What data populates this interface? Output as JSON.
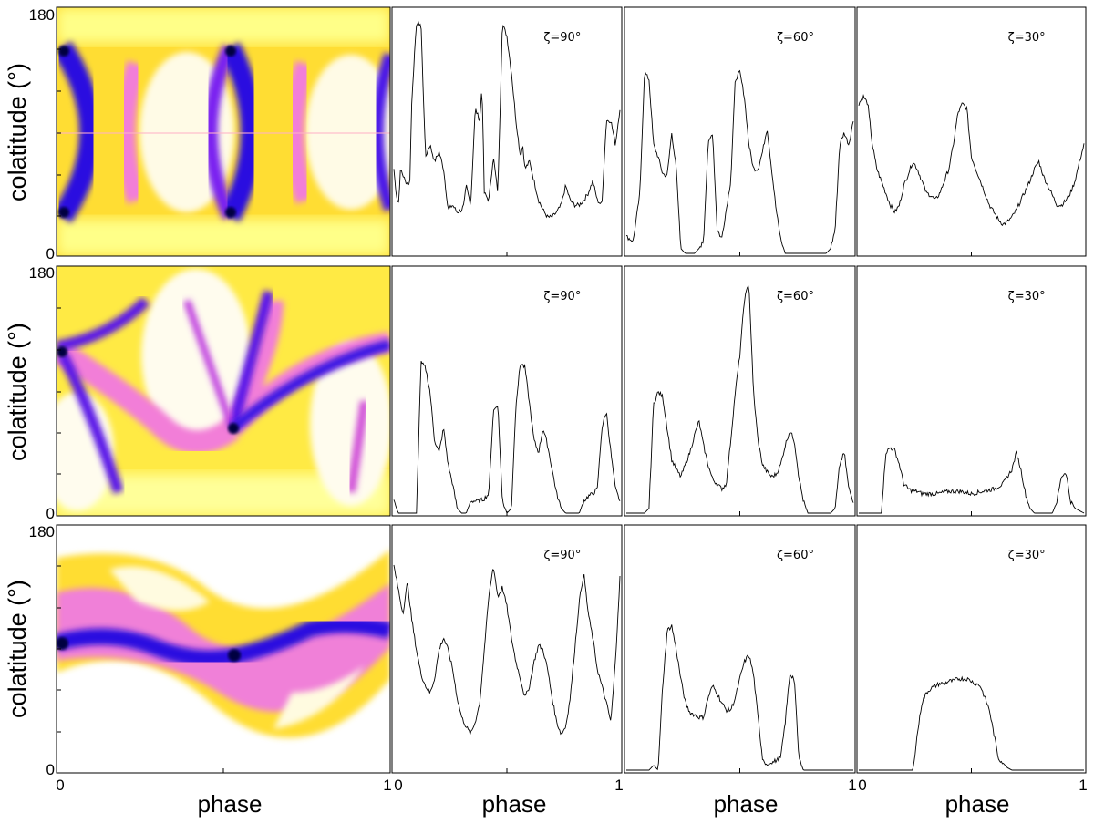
{
  "figure": {
    "colormap_stops": [
      "#ffffff",
      "#ffff66",
      "#ffd000",
      "#f070d0",
      "#7000ff",
      "#2000d0",
      "#000030"
    ]
  },
  "chart_data": [
    {
      "type": "heatmap",
      "row": 1,
      "xlabel": "",
      "ylabel": "colatitude (°)",
      "x_ticks": [
        "0",
        "",
        "1"
      ],
      "y_ticks": [
        "180",
        "",
        "",
        "",
        "",
        "",
        "0"
      ],
      "xlim": [
        0,
        1
      ],
      "ylim": [
        0,
        180
      ],
      "dark_band": {
        "shape": "arcs",
        "arc_phases": [
          0.0,
          0.15,
          0.5,
          0.62,
          1.0
        ],
        "caustic_points": [
          {
            "phase": 0.02,
            "colatitude": 145
          },
          {
            "phase": 0.02,
            "colatitude": 30
          },
          {
            "phase": 0.52,
            "colatitude": 145
          },
          {
            "phase": 0.52,
            "colatitude": 30
          }
        ]
      }
    },
    {
      "type": "line",
      "row": 1,
      "label": "ζ=90°",
      "xlabel": "",
      "xlim": [
        0,
        1
      ],
      "x_ticks": [
        "",
        "",
        ""
      ],
      "x": [
        0,
        0.01,
        0.02,
        0.03,
        0.05,
        0.07,
        0.08,
        0.1,
        0.12,
        0.14,
        0.16,
        0.18,
        0.2,
        0.22,
        0.24,
        0.26,
        0.28,
        0.3,
        0.31,
        0.32,
        0.34,
        0.36,
        0.38,
        0.39,
        0.4,
        0.42,
        0.44,
        0.46,
        0.48,
        0.5,
        0.52,
        0.54,
        0.56,
        0.57,
        0.58,
        0.6,
        0.62,
        0.64,
        0.66,
        0.68,
        0.7,
        0.72,
        0.74,
        0.76,
        0.78,
        0.8,
        0.82,
        0.84,
        0.86,
        0.88,
        0.9,
        0.92,
        0.94,
        0.96,
        0.98,
        1.0
      ],
      "values": [
        0.35,
        0.25,
        0.2,
        0.35,
        0.3,
        0.28,
        0.65,
        0.95,
        0.95,
        0.4,
        0.45,
        0.38,
        0.42,
        0.35,
        0.18,
        0.2,
        0.17,
        0.18,
        0.2,
        0.28,
        0.2,
        0.6,
        0.55,
        0.7,
        0.25,
        0.22,
        0.4,
        0.25,
        0.95,
        0.9,
        0.75,
        0.55,
        0.4,
        0.45,
        0.35,
        0.38,
        0.3,
        0.22,
        0.18,
        0.15,
        0.15,
        0.17,
        0.2,
        0.28,
        0.22,
        0.2,
        0.2,
        0.22,
        0.25,
        0.3,
        0.22,
        0.2,
        0.55,
        0.55,
        0.45,
        0.6
      ]
    },
    {
      "type": "line",
      "row": 1,
      "label": "ζ=60°",
      "xlabel": "",
      "xlim": [
        0,
        1
      ],
      "x_ticks": [
        "",
        "",
        ""
      ],
      "x": [
        0,
        0.03,
        0.06,
        0.08,
        0.1,
        0.12,
        0.14,
        0.16,
        0.18,
        0.2,
        0.22,
        0.24,
        0.26,
        0.28,
        0.3,
        0.32,
        0.34,
        0.36,
        0.38,
        0.4,
        0.42,
        0.44,
        0.46,
        0.48,
        0.5,
        0.52,
        0.54,
        0.56,
        0.58,
        0.6,
        0.62,
        0.64,
        0.66,
        0.68,
        0.7,
        0.72,
        0.74,
        0.76,
        0.78,
        0.8,
        0.82,
        0.84,
        0.86,
        0.88,
        0.9,
        0.92,
        0.94,
        0.96,
        0.98,
        1.0
      ],
      "values": [
        0.07,
        0.05,
        0.25,
        0.75,
        0.72,
        0.45,
        0.4,
        0.33,
        0.32,
        0.5,
        0.35,
        0.02,
        0.0,
        0.0,
        0.0,
        0.02,
        0.05,
        0.45,
        0.5,
        0.1,
        0.06,
        0.18,
        0.3,
        0.72,
        0.75,
        0.65,
        0.45,
        0.35,
        0.35,
        0.42,
        0.52,
        0.35,
        0.18,
        0.06,
        0.0,
        0.0,
        0.0,
        0.0,
        0.0,
        0.0,
        0.0,
        0.0,
        0.0,
        0.0,
        0.02,
        0.1,
        0.45,
        0.5,
        0.45,
        0.55
      ]
    },
    {
      "type": "line",
      "row": 1,
      "label": "ζ=30°",
      "xlabel": "",
      "xlim": [
        0,
        1
      ],
      "x_ticks": [
        "",
        "",
        ""
      ],
      "x": [
        0,
        0.02,
        0.04,
        0.06,
        0.08,
        0.1,
        0.12,
        0.14,
        0.16,
        0.18,
        0.2,
        0.22,
        0.24,
        0.26,
        0.28,
        0.3,
        0.32,
        0.34,
        0.36,
        0.38,
        0.4,
        0.42,
        0.44,
        0.46,
        0.48,
        0.5,
        0.52,
        0.54,
        0.56,
        0.58,
        0.6,
        0.62,
        0.64,
        0.66,
        0.68,
        0.7,
        0.72,
        0.74,
        0.76,
        0.78,
        0.8,
        0.82,
        0.84,
        0.86,
        0.88,
        0.9,
        0.92,
        0.94,
        0.96,
        0.98,
        1.0
      ],
      "values": [
        0.62,
        0.65,
        0.62,
        0.45,
        0.35,
        0.3,
        0.25,
        0.2,
        0.17,
        0.2,
        0.28,
        0.33,
        0.38,
        0.35,
        0.3,
        0.25,
        0.24,
        0.22,
        0.25,
        0.3,
        0.35,
        0.45,
        0.58,
        0.62,
        0.6,
        0.4,
        0.35,
        0.3,
        0.25,
        0.2,
        0.17,
        0.14,
        0.12,
        0.13,
        0.15,
        0.18,
        0.22,
        0.26,
        0.3,
        0.35,
        0.38,
        0.32,
        0.28,
        0.24,
        0.2,
        0.2,
        0.22,
        0.25,
        0.3,
        0.38,
        0.45
      ]
    },
    {
      "type": "heatmap",
      "row": 2,
      "xlabel": "",
      "ylabel": "colatitude (°)",
      "x_ticks": [
        "0",
        "",
        "1"
      ],
      "y_ticks": [
        "180",
        "",
        "",
        "",
        "",
        "",
        "0"
      ],
      "xlim": [
        0,
        1
      ],
      "ylim": [
        0,
        180
      ],
      "dark_band": {
        "shape": "crossing arcs",
        "caustic_points": [
          {
            "phase": 0.02,
            "colatitude": 125
          },
          {
            "phase": 0.53,
            "colatitude": 65
          }
        ]
      }
    },
    {
      "type": "line",
      "row": 2,
      "label": "ζ=90°",
      "xlabel": "",
      "xlim": [
        0,
        1
      ],
      "x_ticks": [
        "",
        "",
        ""
      ],
      "x": [
        0,
        0.02,
        0.04,
        0.06,
        0.08,
        0.1,
        0.12,
        0.14,
        0.16,
        0.18,
        0.2,
        0.22,
        0.24,
        0.26,
        0.28,
        0.3,
        0.32,
        0.34,
        0.36,
        0.38,
        0.4,
        0.42,
        0.44,
        0.46,
        0.48,
        0.5,
        0.52,
        0.54,
        0.56,
        0.58,
        0.6,
        0.62,
        0.64,
        0.66,
        0.68,
        0.7,
        0.72,
        0.74,
        0.76,
        0.78,
        0.8,
        0.82,
        0.84,
        0.86,
        0.88,
        0.9,
        0.92,
        0.94,
        0.96,
        0.98,
        1.0
      ],
      "values": [
        0.05,
        0.0,
        0.0,
        0.0,
        0.0,
        0.0,
        0.62,
        0.6,
        0.5,
        0.3,
        0.25,
        0.35,
        0.2,
        0.12,
        0.02,
        0.0,
        0.0,
        0.05,
        0.05,
        0.05,
        0.06,
        0.08,
        0.42,
        0.45,
        0.05,
        0.0,
        0.02,
        0.45,
        0.62,
        0.6,
        0.45,
        0.3,
        0.25,
        0.35,
        0.28,
        0.18,
        0.08,
        0.02,
        0.0,
        0.0,
        0.0,
        0.0,
        0.05,
        0.07,
        0.08,
        0.1,
        0.35,
        0.42,
        0.25,
        0.1,
        0.05
      ]
    },
    {
      "type": "line",
      "row": 2,
      "label": "ζ=60°",
      "xlabel": "",
      "xlim": [
        0,
        1
      ],
      "x_ticks": [
        "",
        "",
        ""
      ],
      "x": [
        0,
        0.04,
        0.08,
        0.1,
        0.12,
        0.14,
        0.16,
        0.18,
        0.2,
        0.22,
        0.24,
        0.26,
        0.28,
        0.3,
        0.32,
        0.34,
        0.36,
        0.38,
        0.4,
        0.42,
        0.44,
        0.46,
        0.48,
        0.5,
        0.52,
        0.54,
        0.56,
        0.58,
        0.6,
        0.62,
        0.64,
        0.66,
        0.68,
        0.7,
        0.72,
        0.74,
        0.76,
        0.78,
        0.8,
        0.82,
        0.84,
        0.86,
        0.88,
        0.9,
        0.92,
        0.94,
        0.96,
        0.98,
        1.0
      ],
      "values": [
        0.0,
        0.0,
        0.0,
        0.02,
        0.45,
        0.5,
        0.48,
        0.35,
        0.22,
        0.18,
        0.15,
        0.2,
        0.25,
        0.32,
        0.38,
        0.28,
        0.2,
        0.14,
        0.12,
        0.1,
        0.12,
        0.3,
        0.5,
        0.65,
        0.88,
        0.95,
        0.5,
        0.3,
        0.2,
        0.17,
        0.15,
        0.16,
        0.2,
        0.28,
        0.34,
        0.3,
        0.15,
        0.05,
        0.0,
        0.0,
        0.0,
        0.0,
        0.0,
        0.0,
        0.02,
        0.2,
        0.25,
        0.1,
        0.05
      ]
    },
    {
      "type": "line",
      "row": 2,
      "label": "ζ=30°",
      "xlabel": "",
      "xlim": [
        0,
        1
      ],
      "x_ticks": [
        "",
        "",
        ""
      ],
      "x": [
        0,
        0.05,
        0.1,
        0.12,
        0.14,
        0.16,
        0.18,
        0.2,
        0.22,
        0.24,
        0.26,
        0.28,
        0.3,
        0.35,
        0.4,
        0.45,
        0.5,
        0.55,
        0.6,
        0.64,
        0.68,
        0.7,
        0.72,
        0.74,
        0.76,
        0.78,
        0.8,
        0.82,
        0.84,
        0.86,
        0.88,
        0.9,
        0.92,
        0.94,
        0.96,
        0.98,
        1.0
      ],
      "values": [
        0.0,
        0.0,
        0.0,
        0.25,
        0.27,
        0.26,
        0.2,
        0.12,
        0.1,
        0.09,
        0.09,
        0.08,
        0.08,
        0.08,
        0.09,
        0.09,
        0.08,
        0.09,
        0.1,
        0.12,
        0.18,
        0.25,
        0.18,
        0.08,
        0.02,
        0.0,
        0.0,
        0.0,
        0.0,
        0.0,
        0.05,
        0.15,
        0.17,
        0.05,
        0.02,
        0.01,
        0.0
      ]
    },
    {
      "type": "heatmap",
      "row": 3,
      "xlabel": "phase",
      "ylabel": "colatitude (°)",
      "x_ticks": [
        "0",
        "",
        "1"
      ],
      "y_ticks": [
        "180",
        "",
        "",
        "",
        "",
        "",
        "0"
      ],
      "xlim": [
        0,
        1
      ],
      "ylim": [
        0,
        180
      ],
      "dark_band": {
        "shape": "sinusoid",
        "caustic_points": [
          {
            "phase": 0.02,
            "colatitude": 92
          },
          {
            "phase": 0.53,
            "colatitude": 83
          }
        ]
      }
    },
    {
      "type": "line",
      "row": 3,
      "label": "ζ=90°",
      "xlabel": "phase",
      "xlim": [
        0,
        1
      ],
      "x_ticks": [
        "0",
        "",
        "1"
      ],
      "x": [
        0,
        0.02,
        0.04,
        0.06,
        0.08,
        0.1,
        0.12,
        0.14,
        0.16,
        0.18,
        0.2,
        0.22,
        0.24,
        0.26,
        0.28,
        0.3,
        0.32,
        0.34,
        0.36,
        0.38,
        0.4,
        0.42,
        0.44,
        0.46,
        0.48,
        0.5,
        0.52,
        0.54,
        0.56,
        0.58,
        0.6,
        0.62,
        0.64,
        0.66,
        0.68,
        0.7,
        0.72,
        0.74,
        0.76,
        0.78,
        0.8,
        0.82,
        0.84,
        0.86,
        0.88,
        0.9,
        0.92,
        0.94,
        0.96,
        0.98,
        1.0
      ],
      "values": [
        0.85,
        0.75,
        0.65,
        0.78,
        0.62,
        0.5,
        0.4,
        0.35,
        0.32,
        0.38,
        0.5,
        0.55,
        0.5,
        0.42,
        0.3,
        0.22,
        0.18,
        0.15,
        0.2,
        0.28,
        0.5,
        0.72,
        0.85,
        0.72,
        0.76,
        0.68,
        0.55,
        0.45,
        0.38,
        0.3,
        0.35,
        0.45,
        0.52,
        0.5,
        0.42,
        0.3,
        0.2,
        0.15,
        0.18,
        0.3,
        0.5,
        0.7,
        0.82,
        0.65,
        0.55,
        0.42,
        0.35,
        0.28,
        0.2,
        0.45,
        0.8
      ]
    },
    {
      "type": "line",
      "row": 3,
      "label": "ζ=60°",
      "xlabel": "phase",
      "xlim": [
        0,
        1
      ],
      "x_ticks": [
        "0",
        "",
        "1"
      ],
      "x": [
        0,
        0.04,
        0.08,
        0.1,
        0.12,
        0.14,
        0.16,
        0.18,
        0.2,
        0.22,
        0.24,
        0.26,
        0.28,
        0.3,
        0.32,
        0.34,
        0.36,
        0.38,
        0.4,
        0.42,
        0.44,
        0.46,
        0.48,
        0.5,
        0.52,
        0.54,
        0.56,
        0.58,
        0.6,
        0.62,
        0.64,
        0.66,
        0.68,
        0.7,
        0.72,
        0.74,
        0.76,
        0.78,
        0.8,
        0.82,
        0.84,
        0.86,
        0.88,
        0.9,
        0.92,
        0.94,
        0.96,
        0.98,
        1.0
      ],
      "values": [
        0.0,
        0.0,
        0.0,
        0.0,
        0.02,
        0.0,
        0.35,
        0.58,
        0.6,
        0.5,
        0.38,
        0.28,
        0.24,
        0.23,
        0.22,
        0.22,
        0.3,
        0.35,
        0.32,
        0.28,
        0.25,
        0.25,
        0.3,
        0.38,
        0.45,
        0.48,
        0.4,
        0.22,
        0.05,
        0.02,
        0.03,
        0.04,
        0.05,
        0.2,
        0.4,
        0.38,
        0.05,
        0.0,
        0.0,
        0.0,
        0.0,
        0.0,
        0.0,
        0.0,
        0.0,
        0.0,
        0.0,
        0.0,
        0.0
      ]
    },
    {
      "type": "line",
      "row": 3,
      "label": "ζ=30°",
      "xlabel": "phase",
      "xlim": [
        0,
        1
      ],
      "x_ticks": [
        "0",
        "",
        "1"
      ],
      "x": [
        0,
        0.05,
        0.1,
        0.15,
        0.2,
        0.24,
        0.26,
        0.28,
        0.3,
        0.32,
        0.34,
        0.36,
        0.38,
        0.4,
        0.42,
        0.44,
        0.46,
        0.48,
        0.5,
        0.52,
        0.54,
        0.56,
        0.58,
        0.6,
        0.62,
        0.64,
        0.66,
        0.68,
        0.7,
        0.72,
        0.75,
        0.8,
        0.85,
        0.9,
        0.95,
        1.0
      ],
      "values": [
        0.0,
        0.0,
        0.0,
        0.0,
        0.0,
        0.0,
        0.15,
        0.28,
        0.32,
        0.34,
        0.35,
        0.36,
        0.36,
        0.37,
        0.37,
        0.38,
        0.38,
        0.38,
        0.37,
        0.36,
        0.35,
        0.3,
        0.25,
        0.15,
        0.05,
        0.03,
        0.01,
        0.0,
        0.0,
        0.0,
        0.0,
        0.0,
        0.0,
        0.0,
        0.0,
        0.0
      ]
    }
  ]
}
